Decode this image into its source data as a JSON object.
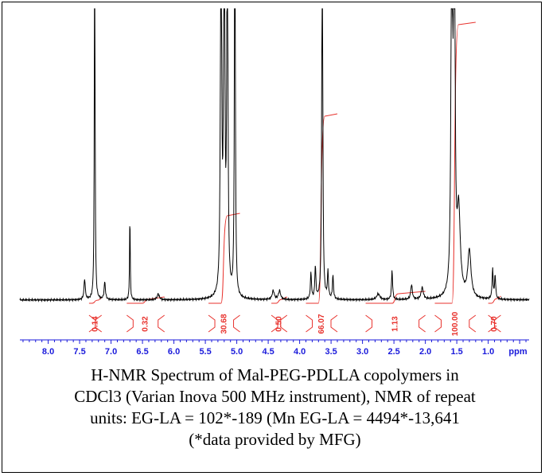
{
  "chart_data": {
    "type": "line",
    "xlabel": "ppm",
    "xlim": [
      8.45,
      0.35
    ],
    "x_reversed": true,
    "ylim": [
      0,
      1
    ],
    "grid": false,
    "tick_labels": [
      "8.0",
      "7.5",
      "7.0",
      "6.5",
      "6.0",
      "5.5",
      "5.0",
      "4.5",
      "4.0",
      "3.5",
      "3.0",
      "2.5",
      "2.0",
      "1.5",
      "1.0"
    ],
    "tick_values": [
      8.0,
      7.5,
      7.0,
      6.5,
      6.0,
      5.5,
      5.0,
      4.5,
      4.0,
      3.5,
      3.0,
      2.5,
      2.0,
      1.5,
      1.0
    ],
    "baseline": 0.03,
    "peaks": [
      {
        "ppm": 7.42,
        "height": 0.07,
        "width": 0.012
      },
      {
        "ppm": 7.26,
        "height": 1.6,
        "width": 0.006
      },
      {
        "ppm": 7.1,
        "height": 0.06,
        "width": 0.012
      },
      {
        "ppm": 6.7,
        "height": 0.3,
        "width": 0.006
      },
      {
        "ppm": 6.25,
        "height": 0.02,
        "width": 0.02
      },
      {
        "ppm": 5.25,
        "height": 1.6,
        "width": 0.01
      },
      {
        "ppm": 5.2,
        "height": 1.6,
        "width": 0.01
      },
      {
        "ppm": 5.15,
        "height": 1.4,
        "width": 0.01
      },
      {
        "ppm": 5.03,
        "height": 1.6,
        "width": 0.008
      },
      {
        "ppm": 4.42,
        "height": 0.03,
        "width": 0.02
      },
      {
        "ppm": 4.32,
        "height": 0.03,
        "width": 0.02
      },
      {
        "ppm": 3.82,
        "height": 0.09,
        "width": 0.01
      },
      {
        "ppm": 3.75,
        "height": 0.11,
        "width": 0.01
      },
      {
        "ppm": 3.64,
        "height": 1.6,
        "width": 0.008
      },
      {
        "ppm": 3.55,
        "height": 0.09,
        "width": 0.01
      },
      {
        "ppm": 3.47,
        "height": 0.08,
        "width": 0.01
      },
      {
        "ppm": 2.75,
        "height": 0.02,
        "width": 0.03
      },
      {
        "ppm": 2.53,
        "height": 0.1,
        "width": 0.01
      },
      {
        "ppm": 2.22,
        "height": 0.05,
        "width": 0.015
      },
      {
        "ppm": 2.05,
        "height": 0.04,
        "width": 0.02
      },
      {
        "ppm": 1.58,
        "height": 1.6,
        "width": 0.012
      },
      {
        "ppm": 1.54,
        "height": 1.6,
        "width": 0.012
      },
      {
        "ppm": 1.47,
        "height": 0.28,
        "width": 0.03
      },
      {
        "ppm": 1.3,
        "height": 0.16,
        "width": 0.03
      },
      {
        "ppm": 0.93,
        "height": 0.1,
        "width": 0.01
      },
      {
        "ppm": 0.89,
        "height": 0.08,
        "width": 0.01
      }
    ],
    "integrals": [
      {
        "label": "0.14",
        "from": 7.35,
        "to": 7.15
      },
      {
        "label": "0.32",
        "from": 6.75,
        "to": 6.15
      },
      {
        "label": "30.68",
        "from": 5.45,
        "to": 4.95
      },
      {
        "label": "0.50",
        "from": 4.45,
        "to": 4.2
      },
      {
        "label": "66.07",
        "from": 3.9,
        "to": 3.4
      },
      {
        "label": "1.13",
        "from": 2.95,
        "to": 2.0
      },
      {
        "label": "100.00",
        "from": 1.85,
        "to": 1.2
      },
      {
        "label": "0.70",
        "from": 1.0,
        "to": 0.8
      }
    ],
    "colors": {
      "spectrum": "#000000",
      "integral": "#e8322d",
      "axis": "#1a1adb"
    }
  },
  "caption": {
    "lines": [
      "H-NMR Spectrum of Mal-PEG-PDLLA copolymers in",
      "CDCl3 (Varian Inova 500 MHz instrument), NMR of repeat",
      "units: EG-LA = 102*-189 (Mn EG-LA = 4494*-13,641",
      "(*data provided by MFG)"
    ]
  }
}
